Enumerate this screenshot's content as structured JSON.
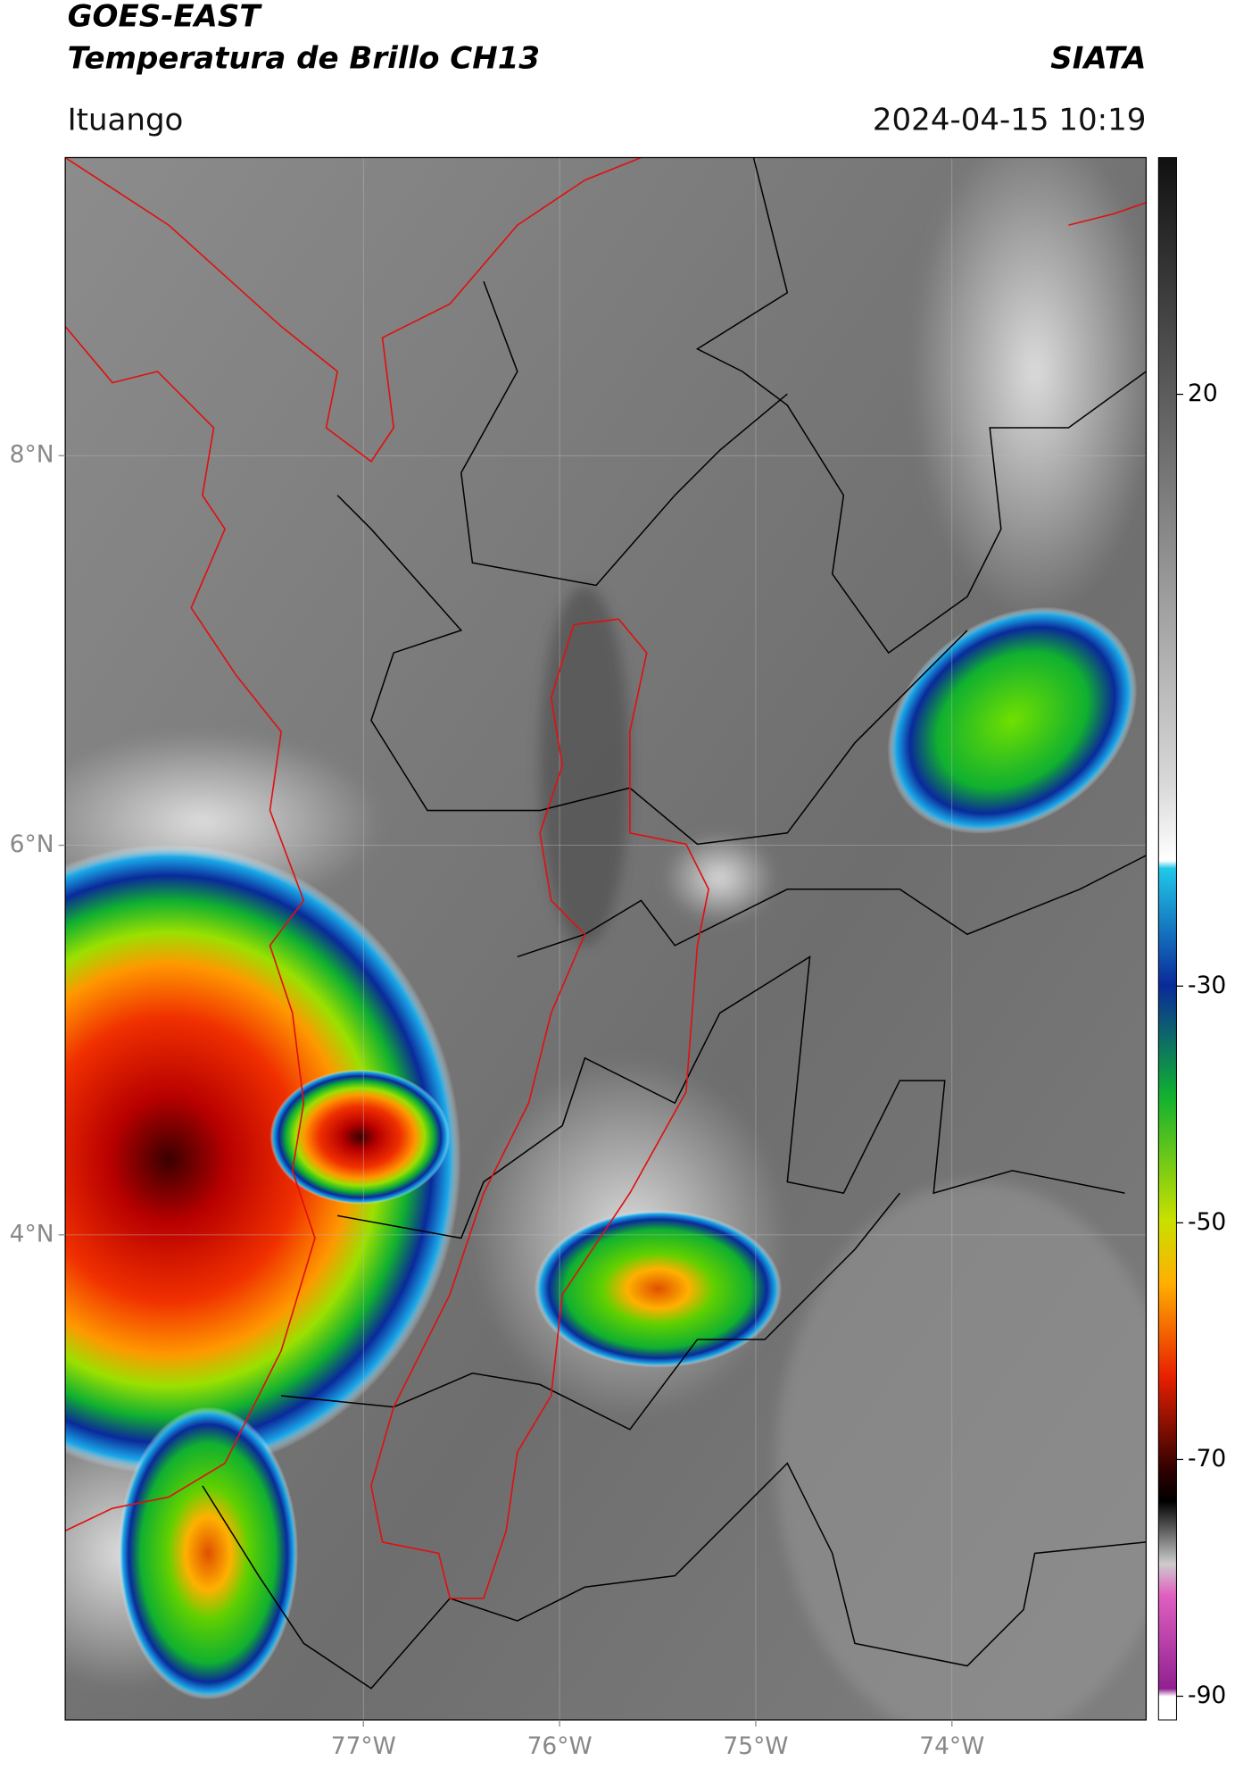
{
  "header": {
    "title": "GOES-EAST",
    "subtitle": "Temperatura de Brillo CH13",
    "brand": "SIATA",
    "location": "Ituango",
    "datetime": "2024-04-15 10:19"
  },
  "map": {
    "type": "map",
    "ylim": [
      1.51,
      9.53
    ],
    "xlim": [
      -78.52,
      -73.01
    ],
    "yticks": [
      {
        "value": 8,
        "label": "8°N"
      },
      {
        "value": 6,
        "label": "6°N"
      },
      {
        "value": 4,
        "label": "4°N"
      }
    ],
    "xticks": [
      {
        "value": -77,
        "label": "77°W"
      },
      {
        "value": -76,
        "label": "76°W"
      },
      {
        "value": -75,
        "label": "75°W"
      },
      {
        "value": -74,
        "label": "74°W"
      }
    ],
    "grid": true
  },
  "colorbar": {
    "lim": [
      -92,
      40
    ],
    "ticks": [
      20,
      -30,
      -50,
      -70,
      -90
    ]
  }
}
